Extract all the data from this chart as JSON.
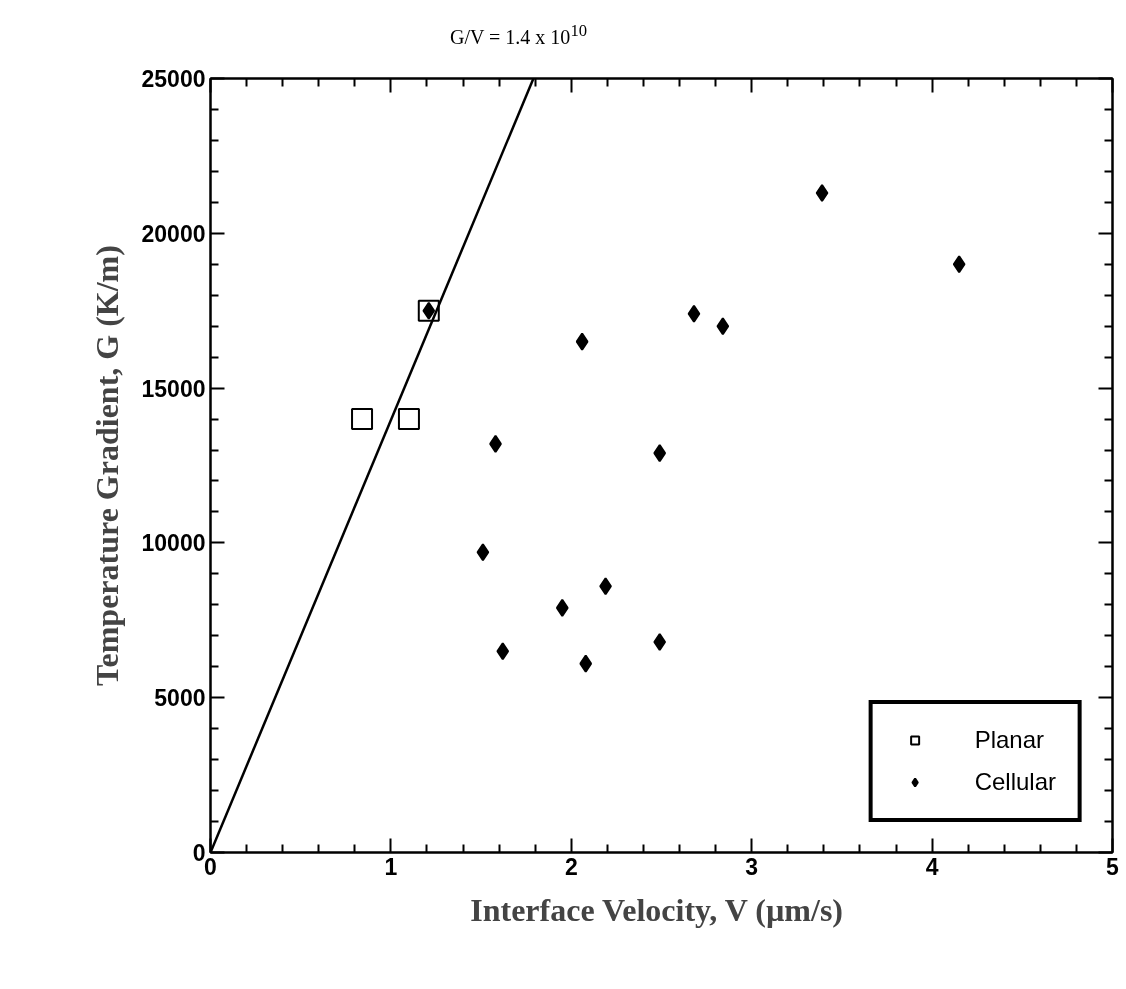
{
  "chart_data": {
    "type": "scatter",
    "xlabel": "Interface Velocity, V  (µm/s)",
    "ylabel": "Temperature Gradient, G (K/m)",
    "annotations": [
      "G/V = 1.4 x 10$^{10}$"
    ],
    "xlim": [
      0,
      5
    ],
    "ylim": [
      0,
      25000
    ],
    "xticks": [
      0,
      1,
      2,
      3,
      4,
      5
    ],
    "yticks": [
      0,
      5000,
      10000,
      15000,
      20000,
      25000
    ],
    "grid": false,
    "legend": "bottom right",
    "series": [
      {
        "type": "line",
        "color": "#000000",
        "x": [
          0,
          1.79
        ],
        "values": [
          0,
          25000
        ],
        "marker": "none",
        "line_style": "solid"
      },
      {
        "name": "Planar",
        "color": "#000000",
        "marker": "square",
        "x": [
          0.84,
          1.1,
          1.21
        ],
        "values": [
          14000,
          14000,
          17500
        ]
      },
      {
        "name": "Cellular",
        "color": "#000000",
        "marker": "diamond",
        "x": [
          1.21,
          2.06,
          1.58,
          1.51,
          1.95,
          2.19,
          1.62,
          2.08,
          2.49,
          2.68,
          2.84,
          3.39,
          4.15,
          2.49
        ],
        "values": [
          17500,
          16500,
          13200,
          9700,
          7900,
          8600,
          6500,
          6100,
          12900,
          17400,
          17000,
          21300,
          19000,
          6800
        ]
      }
    ]
  }
}
